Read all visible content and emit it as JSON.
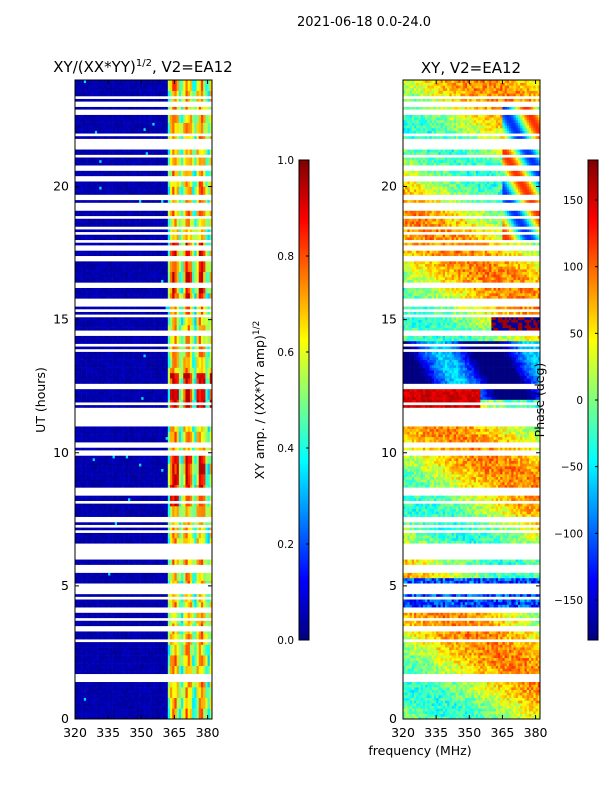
{
  "suptitle": "2021-06-18 0.0-24.0",
  "colors": {
    "jet": [
      "#00007f",
      "#0000ff",
      "#007fff",
      "#00ffff",
      "#7fff7f",
      "#ffff00",
      "#ff7f00",
      "#ff0000",
      "#7f0000"
    ],
    "flag_gap": "#ffffff",
    "frame": "#000000"
  },
  "chart_data": [
    {
      "type": "heatmap",
      "title_main": "XY/(XX*YY)",
      "title_sup": "1/2",
      "title_rest": ", V2=EA12",
      "xlabel": "",
      "ylabel": "UT (hours)",
      "xlim": [
        320,
        382
      ],
      "ylim": [
        0,
        24
      ],
      "xticks": [
        320,
        335,
        350,
        365,
        380
      ],
      "yticks": [
        0,
        5,
        10,
        15,
        20
      ],
      "colorbar": {
        "label_main": "XY amp. / (XX*YY amp)",
        "label_sup": "1/2",
        "range": [
          0.0,
          1.0
        ],
        "ticks": [
          "0.0",
          "0.2",
          "0.4",
          "0.6",
          "0.8",
          "1.0"
        ]
      },
      "description": "normalized amplitude vs frequency (MHz) and UT (hours); near 0 below ~362 MHz, bright 0.3-0.8 vertical stripes between ~362 and 382 MHz",
      "bright_band_MHz": [
        362,
        382
      ],
      "flagged_rows_UT": [
        1.5,
        1.6,
        2.95,
        3.4,
        3.75,
        4.1,
        4.55,
        4.75,
        4.9,
        5.05,
        5.55,
        5.7,
        6.1,
        6.2,
        6.3,
        6.45,
        6.55,
        7.05,
        7.25,
        7.5,
        8.15,
        8.45,
        8.6,
        10.0,
        10.25,
        10.35,
        11.05,
        11.2,
        11.35,
        11.5,
        11.65,
        11.85,
        12.5,
        13.85,
        14.05,
        14.5,
        15.15,
        15.35,
        15.55,
        15.7,
        16.3,
        17.3,
        17.7,
        17.95,
        18.25,
        18.45,
        18.85,
        19.2,
        19.35,
        19.6,
        20.3,
        20.7,
        21.15,
        21.5,
        21.7,
        21.95,
        22.8,
        23.1,
        23.35
      ]
    },
    {
      "type": "heatmap",
      "title": "XY, V2=EA12",
      "xlabel": "frequency (MHz)",
      "ylabel": "",
      "xlim": [
        320,
        382
      ],
      "ylim": [
        0,
        24
      ],
      "xticks": [
        320,
        335,
        350,
        365,
        380
      ],
      "yticks": [
        0,
        5,
        10,
        15,
        20
      ],
      "colorbar": {
        "label": "Phase (deg)",
        "range": [
          -180,
          180
        ],
        "ticks": [
          "−150",
          "−100",
          "−50",
          "0",
          "50",
          "100",
          "150"
        ]
      },
      "description": "phase vs frequency and UT; mostly noisy 0-100 deg (green/yellow/orange) with blue bands near 12-14 h and 4-5 h and red patches near 11.5-12.5 h",
      "flagged_rows_UT": [
        1.5,
        1.6,
        2.95,
        3.4,
        3.75,
        4.1,
        4.55,
        4.75,
        4.9,
        5.05,
        5.55,
        5.7,
        6.1,
        6.2,
        6.3,
        6.45,
        6.55,
        7.05,
        7.25,
        7.5,
        8.15,
        8.45,
        8.6,
        10.0,
        10.25,
        10.35,
        11.05,
        11.2,
        11.35,
        11.5,
        11.65,
        11.85,
        12.5,
        13.85,
        14.05,
        14.5,
        15.15,
        15.35,
        15.55,
        15.7,
        16.3,
        17.3,
        17.7,
        17.95,
        18.25,
        18.45,
        18.85,
        19.2,
        19.35,
        19.6,
        20.3,
        20.7,
        21.15,
        21.5,
        21.7,
        21.95,
        22.8,
        23.1,
        23.35
      ]
    }
  ]
}
